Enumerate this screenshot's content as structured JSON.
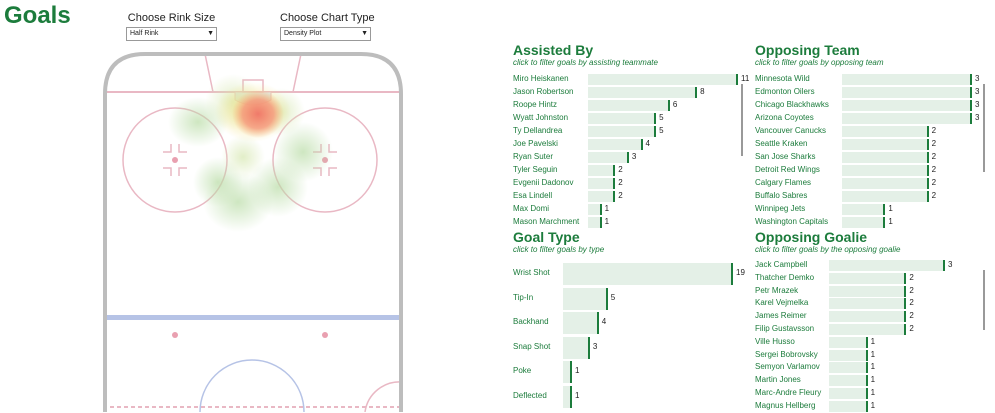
{
  "page": {
    "title": "Goals"
  },
  "controls": {
    "rink_size": {
      "label": "Choose Rink Size",
      "value": "Half Rink"
    },
    "chart_type": {
      "label": "Choose Chart Type",
      "value": "Density Plot"
    }
  },
  "panels": {
    "assisted_by": {
      "title": "Assisted By",
      "subtitle": "click to filter goals by assisting teammate",
      "items": [
        {
          "label": "Miro Heiskanen",
          "value": 11
        },
        {
          "label": "Jason Robertson",
          "value": 8
        },
        {
          "label": "Roope Hintz",
          "value": 6
        },
        {
          "label": "Wyatt Johnston",
          "value": 5
        },
        {
          "label": "Ty Dellandrea",
          "value": 5
        },
        {
          "label": "Joe Pavelski",
          "value": 4
        },
        {
          "label": "Ryan Suter",
          "value": 3
        },
        {
          "label": "Tyler Seguin",
          "value": 2
        },
        {
          "label": "Evgenii Dadonov",
          "value": 2
        },
        {
          "label": "Esa Lindell",
          "value": 2
        },
        {
          "label": "Max Domi",
          "value": 1
        },
        {
          "label": "Mason Marchment",
          "value": 1
        }
      ]
    },
    "opposing_team": {
      "title": "Opposing Team",
      "subtitle": "click to filter goals by opposing team",
      "items": [
        {
          "label": "Minnesota Wild",
          "value": 3
        },
        {
          "label": "Edmonton Oilers",
          "value": 3
        },
        {
          "label": "Chicago Blackhawks",
          "value": 3
        },
        {
          "label": "Arizona Coyotes",
          "value": 3
        },
        {
          "label": "Vancouver Canucks",
          "value": 2
        },
        {
          "label": "Seattle Kraken",
          "value": 2
        },
        {
          "label": "San Jose Sharks",
          "value": 2
        },
        {
          "label": "Detroit Red Wings",
          "value": 2
        },
        {
          "label": "Calgary Flames",
          "value": 2
        },
        {
          "label": "Buffalo Sabres",
          "value": 2
        },
        {
          "label": "Winnipeg Jets",
          "value": 1
        },
        {
          "label": "Washington Capitals",
          "value": 1
        }
      ]
    },
    "goal_type": {
      "title": "Goal Type",
      "subtitle": "click to filter goals by type",
      "items": [
        {
          "label": "Wrist Shot",
          "value": 19
        },
        {
          "label": "Tip-In",
          "value": 5
        },
        {
          "label": "Backhand",
          "value": 4
        },
        {
          "label": "Snap Shot",
          "value": 3
        },
        {
          "label": "Poke",
          "value": 1
        },
        {
          "label": "Deflected",
          "value": 1
        }
      ]
    },
    "opposing_goalie": {
      "title": "Opposing Goalie",
      "subtitle": "click to filter goals by the opposing goalie",
      "items": [
        {
          "label": "Jack Campbell",
          "value": 3
        },
        {
          "label": "Thatcher Demko",
          "value": 2
        },
        {
          "label": "Petr Mrazek",
          "value": 2
        },
        {
          "label": "Karel Vejmelka",
          "value": 2
        },
        {
          "label": "James Reimer",
          "value": 2
        },
        {
          "label": "Filip Gustavsson",
          "value": 2
        },
        {
          "label": "Ville Husso",
          "value": 1
        },
        {
          "label": "Sergei Bobrovsky",
          "value": 1
        },
        {
          "label": "Semyon Varlamov",
          "value": 1
        },
        {
          "label": "Martin Jones",
          "value": 1
        },
        {
          "label": "Marc-Andre Fleury",
          "value": 1
        },
        {
          "label": "Magnus Hellberg",
          "value": 1
        }
      ]
    }
  },
  "colors": {
    "accent": "#1c7c3c",
    "bar_bg": "#e4f0e7",
    "rink_line": "#e9b8c4",
    "blue_line": "#b6c3e6"
  }
}
